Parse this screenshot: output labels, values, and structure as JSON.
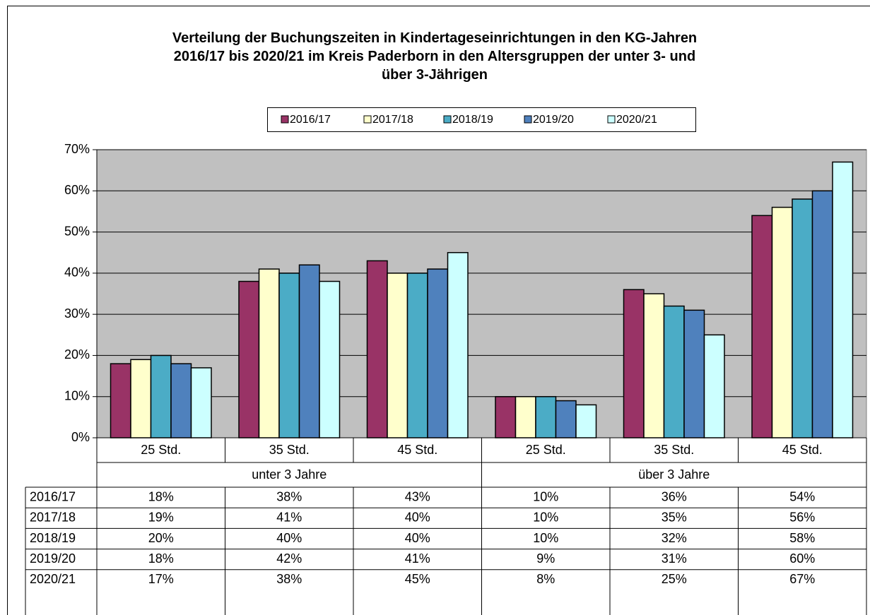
{
  "chart_data": {
    "type": "bar",
    "title": "Verteilung der Buchungszeiten in Kindertageseinrichtungen in den KG-Jahren 2016/17 bis 2020/21 im Kreis Paderborn in den Altersgruppen  der unter 3- und über 3-Jährigen",
    "categories": [
      "25 Std.",
      "35 Std.",
      "45 Std.",
      "25 Std.",
      "35 Std.",
      "45 Std."
    ],
    "category_groups": [
      "unter 3 Jahre",
      "über 3 Jahre"
    ],
    "series": [
      {
        "name": "2016/17",
        "color": "#993366",
        "values": [
          18,
          38,
          43,
          10,
          36,
          54
        ],
        "value_labels": [
          "18%",
          "38%",
          "43%",
          "10%",
          "36%",
          "54%"
        ]
      },
      {
        "name": "2017/18",
        "color": "#ffffcc",
        "values": [
          19,
          41,
          40,
          10,
          35,
          56
        ],
        "value_labels": [
          "19%",
          "41%",
          "40%",
          "10%",
          "35%",
          "56%"
        ]
      },
      {
        "name": "2018/19",
        "color": "#4bacc6",
        "values": [
          20,
          40,
          40,
          10,
          32,
          58
        ],
        "value_labels": [
          "20%",
          "40%",
          "40%",
          "10%",
          "32%",
          "58%"
        ]
      },
      {
        "name": "2019/20",
        "color": "#4f81bd",
        "values": [
          18,
          42,
          41,
          9,
          31,
          60
        ],
        "value_labels": [
          "18%",
          "42%",
          "41%",
          "9%",
          "31%",
          "60%"
        ]
      },
      {
        "name": "2020/21",
        "color": "#ccffff",
        "values": [
          17,
          38,
          45,
          8,
          25,
          67
        ],
        "value_labels": [
          "17%",
          "38%",
          "45%",
          "8%",
          "25%",
          "67%"
        ]
      }
    ],
    "ylim": [
      0,
      70
    ],
    "yticks": [
      {
        "value": 0,
        "label": "0%"
      },
      {
        "value": 10,
        "label": "10%"
      },
      {
        "value": 20,
        "label": "20%"
      },
      {
        "value": 30,
        "label": "30%"
      },
      {
        "value": 40,
        "label": "40%"
      },
      {
        "value": 50,
        "label": "50%"
      },
      {
        "value": 60,
        "label": "60%"
      },
      {
        "value": 70,
        "label": "70%"
      }
    ],
    "grid": true
  }
}
